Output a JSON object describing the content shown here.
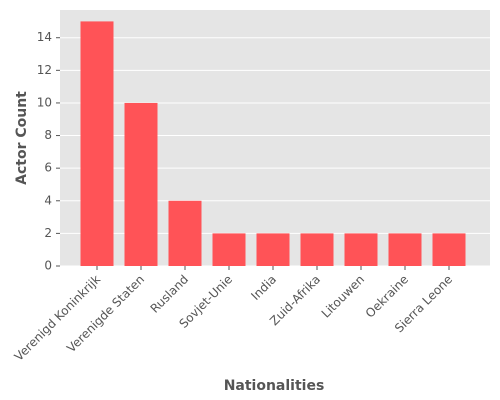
{
  "chart_data": {
    "type": "bar",
    "xlabel": "Nationalities",
    "ylabel": "Actor Count",
    "categories": [
      "Verenigd Koninkrijk",
      "Verenigde Staten",
      "Rusland",
      "Sovjet-Unie",
      "India",
      "Zuid-Afrika",
      "Litouwen",
      "Oekraine",
      "Sierra Leone"
    ],
    "values": [
      15,
      10,
      4,
      2,
      2,
      2,
      2,
      2,
      2
    ],
    "color": "#ff5357",
    "ylim": [
      0,
      15.7
    ],
    "yticks": [
      0,
      2,
      4,
      6,
      8,
      10,
      12,
      14
    ],
    "grid": true
  }
}
